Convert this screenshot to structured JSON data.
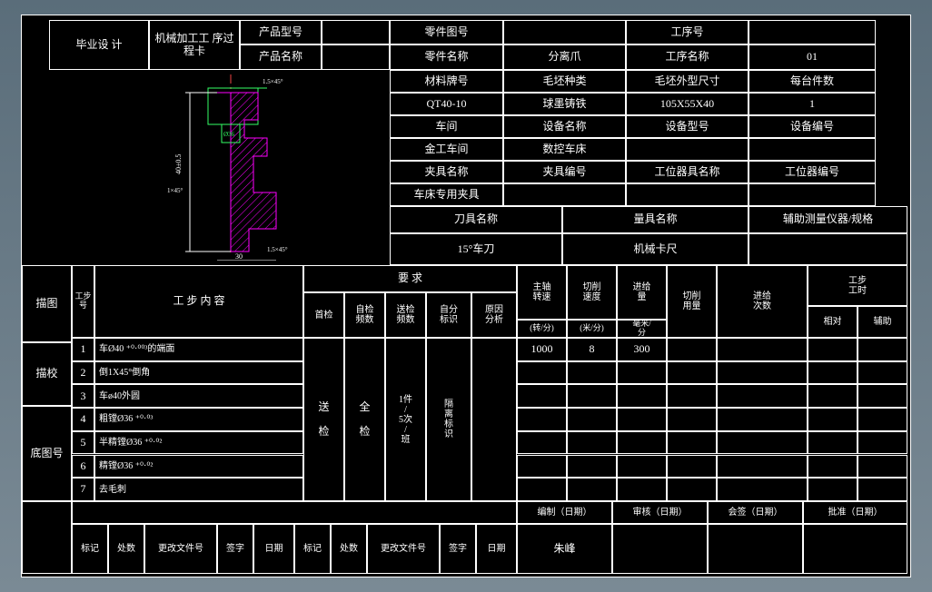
{
  "header": {
    "title": "毕业设\n计",
    "card": "机械加工工\n序过程卡",
    "product_model_lbl": "产品型号",
    "product_name_lbl": "产品名称"
  },
  "info": {
    "part_drawing_lbl": "零件图号",
    "proc_no_lbl": "工序号",
    "part_name_lbl": "零件名称",
    "part_name": "分离爪",
    "proc_name_lbl": "工序名称",
    "proc_name": "01",
    "material_lbl": "材料牌号",
    "blank_type_lbl": "毛坯种类",
    "blank_dim_lbl": "毛坯外型尺寸",
    "per_unit_lbl": "每台件数",
    "material": "QT40-10",
    "blank_type": "球墨铸铁",
    "blank_dim": "105X55X40",
    "per_unit": "1",
    "workshop_lbl": "车间",
    "equip_name_lbl": "设备名称",
    "equip_model_lbl": "设备型号",
    "equip_no_lbl": "设备编号",
    "workshop": "金工车间",
    "equip_name": "数控车床",
    "fixture_lbl": "夹具名称",
    "fixture_no_lbl": "夹具编号",
    "station_tool_lbl": "工位器具名称",
    "station_no_lbl": "工位器编号",
    "fixture": "车床专用夹具",
    "tool_name_lbl": "刀具名称",
    "gauge_lbl": "量具名称",
    "aux_lbl": "辅助测量仪器/规格",
    "tool_name": "15°车刀",
    "gauge": "机械卡尺"
  },
  "left_labels": {
    "miaotu": "描图",
    "miaoxiao": "描校",
    "ditu": "底图号"
  },
  "step_header": {
    "step_no": "工步号",
    "content": "工 步 内 容",
    "req": "要    求",
    "first": "首检",
    "self_freq": "自检\n频数",
    "send_freq": "送检\n频数",
    "self_mark": "自分\n标识",
    "cause": "原因\n分析",
    "spindle": "主轴\n转速",
    "spindle_unit": "(转/分)",
    "cut_speed": "切削\n速度",
    "cut_unit": "(米/分)",
    "feed": "进给\n量",
    "feed_unit": "毫米/\n分",
    "cut_depth": "切削\n用量",
    "feed_count": "进给\n次数",
    "step_time": "工步\n工时",
    "rel": "相对",
    "aux": "辅助"
  },
  "steps": [
    {
      "n": "1",
      "c": "车Ø40 ⁺⁰·⁰⁰³的端面",
      "s": "1000",
      "v": "8",
      "f": "300"
    },
    {
      "n": "2",
      "c": "倒1X45°倒角"
    },
    {
      "n": "3",
      "c": "车ø40外圆"
    },
    {
      "n": "4",
      "c": "粗镗Ø36 ⁺⁰·⁰³"
    },
    {
      "n": "5",
      "c": "半精镗Ø36 ⁺⁰·⁰²"
    },
    {
      "n": "6",
      "c": "精镗Ø36 ⁺⁰·⁰²"
    },
    {
      "n": "7",
      "c": "去毛刺"
    }
  ],
  "merged": {
    "send": "送\n\n检",
    "all": "全\n\n检",
    "band": "1件\n/\n5次\n/\n班",
    "iso": "隔\n离\n标\n识"
  },
  "footer": {
    "mark": "标记",
    "count": "处数",
    "change": "更改文件号",
    "sign": "签字",
    "date": "日期",
    "prep": "编制（日期）",
    "review": "审核（日期）",
    "cosign": "会签（日期）",
    "approve": "批准（日期）",
    "name": "朱峰"
  },
  "colors": {
    "line": "#ffffff",
    "bg": "#000000",
    "accent": "#ff00ff",
    "green": "#33ff66"
  }
}
